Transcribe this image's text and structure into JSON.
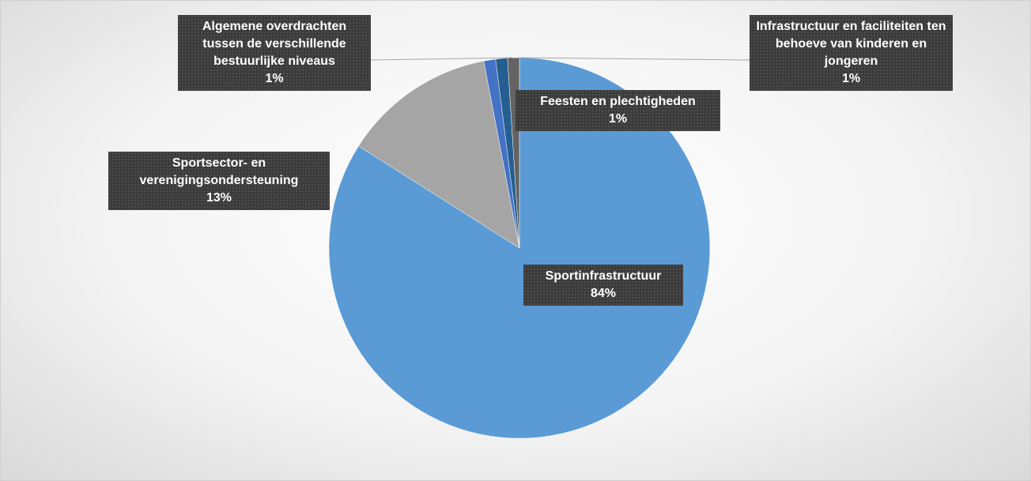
{
  "chart_data": {
    "type": "pie",
    "categories": [
      "Sportinfrastructuur",
      "Sportsector- en verenigingsondersteuning",
      "Algemene overdrachten tussen de verschillende bestuurlijke niveaus",
      "Feesten en plechtigheden",
      "Infrastructuur en faciliteiten ten behoeve van kinderen en jongeren"
    ],
    "values": [
      84,
      13,
      1,
      1,
      1
    ],
    "value_labels": [
      "84%",
      "13%",
      "1%",
      "1%",
      "1%"
    ],
    "colors": [
      "#5b9bd5",
      "#a5a5a5",
      "#4472c4",
      "#255e91",
      "#636363"
    ]
  }
}
